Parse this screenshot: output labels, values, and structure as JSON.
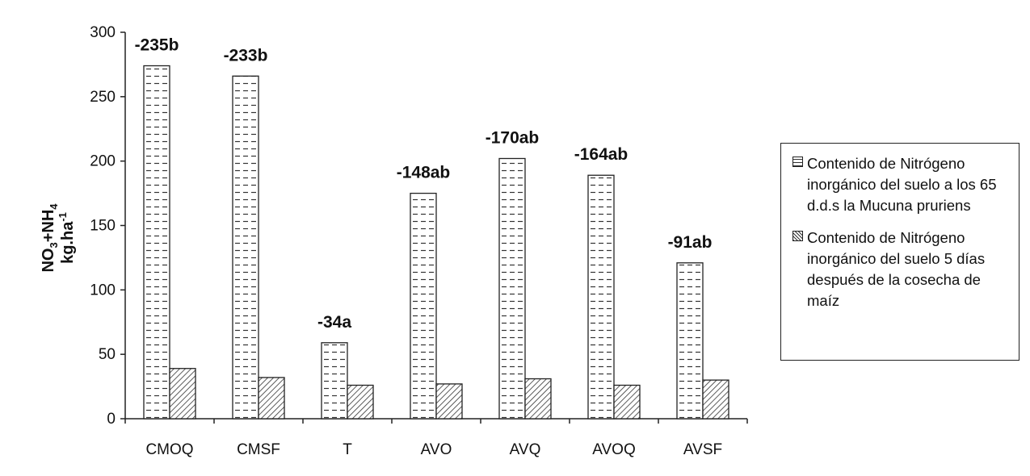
{
  "chart_data": {
    "type": "bar",
    "categories": [
      "CMOQ",
      "CMSF",
      "T",
      "AVO",
      "AVQ",
      "AVOQ",
      "AVSF"
    ],
    "series": [
      {
        "name": "Contenido de Nitrógeno inorgánico del suelo a los 65 d.d.s la Mucuna pruriens",
        "values": [
          274,
          266,
          59,
          175,
          202,
          189,
          121
        ]
      },
      {
        "name": "Contenido de Nitrógeno inorgánico del suelo 5 días después de la cosecha de maíz",
        "values": [
          39,
          32,
          26,
          27,
          31,
          26,
          30
        ]
      }
    ],
    "annotations": [
      "-235b",
      "-233b",
      "-34a",
      "-148ab",
      "-170ab",
      "-164ab",
      "-91ab"
    ],
    "ylabel_line1": "NO3+NH4",
    "ylabel_line2": "kg.ha-1",
    "ylim": [
      0,
      300
    ],
    "yticks": [
      0,
      50,
      100,
      150,
      200,
      250,
      300
    ],
    "grid": false,
    "legend_position": "right",
    "colors": {
      "axis": "#222222",
      "bar_stroke": "#222222",
      "fill": "#ffffff"
    }
  }
}
